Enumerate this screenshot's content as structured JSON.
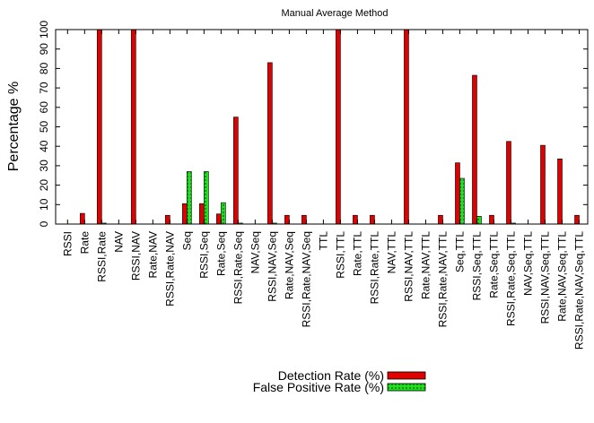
{
  "chart_data": {
    "type": "bar",
    "title": "Manual Average Method",
    "xlabel": "",
    "ylabel": "Percentage %",
    "ylim": [
      0,
      100
    ],
    "yticks": [
      0,
      10,
      20,
      30,
      40,
      50,
      60,
      70,
      80,
      90,
      100
    ],
    "grid": false,
    "legend_position": "bottom",
    "categories": [
      "RSSI",
      "Rate",
      "RSSI,Rate",
      "NAV",
      "RSSI,NAV",
      "Rate,NAV",
      "RSSI,Rate,NAV",
      "Seq",
      "RSSI,Seq",
      "Rate,Seq",
      "RSSI,Rate,Seq",
      "NAV,Seq",
      "RSSI,NAV,Seq",
      "Rate,NAV,Seq",
      "RSSI,Rate,NAV,Seq",
      "TTL",
      "RSSI,TTL",
      "Rate,TTL",
      "RSSI,Rate,TTL",
      "NAV,TTL",
      "RSSI,NAV,TTL",
      "Rate,NAV,TTL",
      "RSSI,Rate,NAV,TTL",
      "Seq,TTL",
      "RSSI,Seq,TTL",
      "Rate,Seq,TTL",
      "RSSI,Rate,Seq,TTL",
      "NAV,Seq,TTL",
      "RSSI,NAV,Seq,TTL",
      "Rate,NAV,Seq,TTL",
      "RSSI,Rate,NAV,Seq,TTL"
    ],
    "series": [
      {
        "name": "Detection Rate (%)",
        "color": "#e00000",
        "values": [
          0,
          5.5,
          100,
          0,
          100,
          0,
          4.5,
          10.5,
          10.5,
          5.2,
          55,
          0,
          83,
          4.5,
          4.5,
          0,
          100,
          4.5,
          4.5,
          0,
          100,
          0,
          4.5,
          31.5,
          76.5,
          4.5,
          42.5,
          0,
          40.5,
          33.5,
          4.5
        ]
      },
      {
        "name": "False Positive Rate (%)",
        "color": "#22dd22",
        "values": [
          0,
          0,
          0.5,
          0,
          0,
          0,
          0,
          27,
          27,
          11,
          0.5,
          0,
          0.5,
          0,
          0,
          0,
          0,
          0,
          0,
          0,
          0,
          0,
          0,
          23.5,
          4,
          0,
          0.5,
          0,
          0,
          0,
          0
        ]
      }
    ]
  }
}
